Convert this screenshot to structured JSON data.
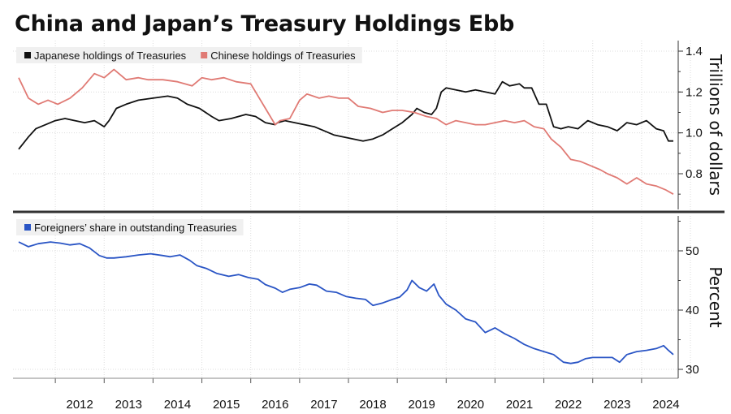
{
  "title": "China and Japan’s Treasury Holdings Ebb",
  "x_tick_labels": [
    "2012",
    "2013",
    "2014",
    "2015",
    "2016",
    "2017",
    "2018",
    "2019",
    "2020",
    "2021",
    "2022",
    "2023",
    "2024"
  ],
  "chart_data": [
    {
      "type": "line",
      "ylabel": "Trillions of dollars",
      "ylim": [
        0.67,
        1.42
      ],
      "yticks": [
        0.8,
        1.0,
        1.2,
        1.4
      ],
      "ytick_labels": [
        "0.8",
        "1.0",
        "1.2",
        "1.4"
      ],
      "xlim": [
        2011.2,
        2024.75
      ],
      "legend_position": "top-left",
      "series": [
        {
          "name": "Japanese holdings of Treasuries",
          "color": "#111111",
          "x": [
            2011.25,
            2011.45,
            2011.6,
            2011.8,
            2012.0,
            2012.2,
            2012.4,
            2012.6,
            2012.8,
            2013.0,
            2013.1,
            2013.25,
            2013.45,
            2013.7,
            2014.0,
            2014.3,
            2014.5,
            2014.7,
            2014.95,
            2015.2,
            2015.35,
            2015.6,
            2015.9,
            2016.1,
            2016.3,
            2016.5,
            2016.55,
            2016.7,
            2016.9,
            2017.1,
            2017.3,
            2017.5,
            2017.7,
            2017.9,
            2018.1,
            2018.3,
            2018.5,
            2018.7,
            2018.9,
            2019.1,
            2019.3,
            2019.4,
            2019.55,
            2019.7,
            2019.8,
            2019.9,
            2020.0,
            2020.2,
            2020.4,
            2020.6,
            2020.8,
            2021.0,
            2021.15,
            2021.3,
            2021.5,
            2021.6,
            2021.75,
            2021.9,
            2022.05,
            2022.2,
            2022.35,
            2022.5,
            2022.7,
            2022.9,
            2023.1,
            2023.3,
            2023.5,
            2023.7,
            2023.9,
            2024.1,
            2024.3,
            2024.45,
            2024.55,
            2024.65
          ],
          "y": [
            0.92,
            0.98,
            1.02,
            1.04,
            1.06,
            1.07,
            1.06,
            1.05,
            1.06,
            1.03,
            1.06,
            1.12,
            1.14,
            1.16,
            1.17,
            1.18,
            1.17,
            1.14,
            1.12,
            1.08,
            1.06,
            1.07,
            1.09,
            1.08,
            1.05,
            1.04,
            1.05,
            1.06,
            1.05,
            1.04,
            1.03,
            1.01,
            0.99,
            0.98,
            0.97,
            0.96,
            0.97,
            0.99,
            1.02,
            1.05,
            1.09,
            1.12,
            1.1,
            1.09,
            1.12,
            1.2,
            1.22,
            1.21,
            1.2,
            1.21,
            1.2,
            1.19,
            1.25,
            1.23,
            1.24,
            1.22,
            1.22,
            1.14,
            1.14,
            1.03,
            1.02,
            1.03,
            1.02,
            1.06,
            1.04,
            1.03,
            1.01,
            1.05,
            1.04,
            1.06,
            1.02,
            1.01,
            0.96,
            0.96
          ]
        },
        {
          "name": "Chinese holdings of Treasuries",
          "color": "#e07a74",
          "x": [
            2011.25,
            2011.45,
            2011.65,
            2011.85,
            2012.05,
            2012.3,
            2012.55,
            2012.8,
            2013.0,
            2013.2,
            2013.45,
            2013.7,
            2013.9,
            2014.2,
            2014.5,
            2014.8,
            2015.0,
            2015.2,
            2015.45,
            2015.7,
            2016.0,
            2016.3,
            2016.5,
            2016.6,
            2016.8,
            2017.0,
            2017.15,
            2017.4,
            2017.6,
            2017.8,
            2018.0,
            2018.2,
            2018.45,
            2018.7,
            2018.9,
            2019.1,
            2019.35,
            2019.6,
            2019.8,
            2020.0,
            2020.2,
            2020.4,
            2020.6,
            2020.8,
            2021.0,
            2021.2,
            2021.4,
            2021.6,
            2021.8,
            2022.0,
            2022.15,
            2022.35,
            2022.55,
            2022.75,
            2022.95,
            2023.15,
            2023.3,
            2023.5,
            2023.7,
            2023.9,
            2024.1,
            2024.3,
            2024.5,
            2024.65
          ],
          "y": [
            1.27,
            1.17,
            1.14,
            1.16,
            1.14,
            1.17,
            1.22,
            1.29,
            1.27,
            1.31,
            1.26,
            1.27,
            1.26,
            1.26,
            1.25,
            1.23,
            1.27,
            1.26,
            1.27,
            1.25,
            1.24,
            1.12,
            1.04,
            1.06,
            1.07,
            1.16,
            1.19,
            1.17,
            1.18,
            1.17,
            1.17,
            1.13,
            1.12,
            1.1,
            1.11,
            1.11,
            1.1,
            1.08,
            1.07,
            1.04,
            1.06,
            1.05,
            1.04,
            1.04,
            1.05,
            1.06,
            1.05,
            1.06,
            1.03,
            1.02,
            0.97,
            0.93,
            0.87,
            0.86,
            0.84,
            0.82,
            0.8,
            0.78,
            0.75,
            0.78,
            0.75,
            0.74,
            0.72,
            0.7
          ]
        }
      ]
    },
    {
      "type": "line",
      "ylabel": "Percent",
      "ylim": [
        29,
        56
      ],
      "yticks": [
        30,
        40,
        50
      ],
      "ytick_labels": [
        "30",
        "40",
        "50"
      ],
      "xlim": [
        2011.2,
        2024.75
      ],
      "legend_position": "top-left",
      "series": [
        {
          "name": "Foreigners’ share in outstanding Treasuries",
          "color": "#2a55c5",
          "x": [
            2011.25,
            2011.45,
            2011.65,
            2011.9,
            2012.1,
            2012.3,
            2012.5,
            2012.7,
            2012.9,
            2013.05,
            2013.2,
            2013.45,
            2013.7,
            2013.95,
            2014.2,
            2014.35,
            2014.55,
            2014.75,
            2014.9,
            2015.1,
            2015.3,
            2015.55,
            2015.75,
            2015.95,
            2016.15,
            2016.3,
            2016.5,
            2016.65,
            2016.8,
            2017.0,
            2017.2,
            2017.35,
            2017.55,
            2017.75,
            2017.95,
            2018.15,
            2018.35,
            2018.5,
            2018.7,
            2018.9,
            2019.05,
            2019.2,
            2019.3,
            2019.45,
            2019.6,
            2019.75,
            2019.85,
            2020.0,
            2020.2,
            2020.4,
            2020.6,
            2020.8,
            2021.0,
            2021.2,
            2021.4,
            2021.6,
            2021.8,
            2022.0,
            2022.2,
            2022.4,
            2022.55,
            2022.7,
            2022.85,
            2023.0,
            2023.2,
            2023.4,
            2023.55,
            2023.7,
            2023.9,
            2024.1,
            2024.3,
            2024.45,
            2024.55,
            2024.65
          ],
          "y": [
            51.5,
            50.7,
            51.2,
            51.5,
            51.3,
            51.0,
            51.2,
            50.5,
            49.2,
            48.8,
            48.8,
            49.0,
            49.3,
            49.5,
            49.2,
            49.0,
            49.3,
            48.4,
            47.5,
            47.0,
            46.2,
            45.7,
            46.0,
            45.5,
            45.2,
            44.3,
            43.7,
            43.0,
            43.5,
            43.8,
            44.4,
            44.2,
            43.2,
            43.0,
            42.3,
            42.0,
            41.8,
            40.8,
            41.2,
            41.8,
            42.2,
            43.4,
            45.0,
            43.8,
            43.2,
            44.4,
            42.5,
            41.0,
            40.0,
            38.5,
            38.0,
            36.2,
            37.0,
            36.0,
            35.2,
            34.2,
            33.5,
            33.0,
            32.5,
            31.2,
            31.0,
            31.2,
            31.8,
            32.0,
            32.0,
            32.0,
            31.2,
            32.5,
            33.0,
            33.2,
            33.5,
            34.0,
            33.2,
            32.5
          ]
        }
      ]
    }
  ]
}
